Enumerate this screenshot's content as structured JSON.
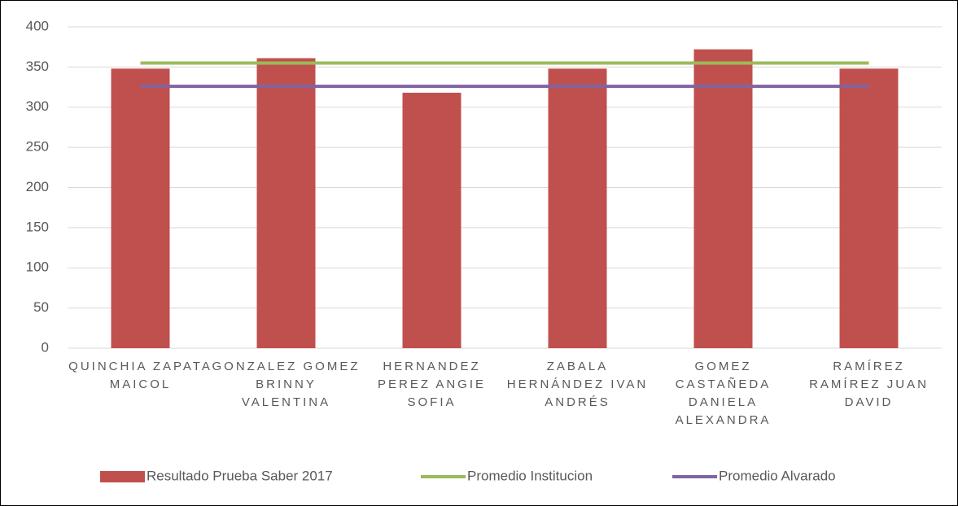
{
  "chart_data": {
    "type": "bar",
    "categories": [
      "QUINCHIA ZAPATA MAICOL",
      "GONZALEZ GOMEZ BRINNY VALENTINA",
      "HERNANDEZ PEREZ ANGIE SOFIA",
      "ZABALA HERNÁNDEZ IVAN ANDRÉS",
      "GOMEZ CASTAÑEDA DANIELA ALEXANDRA",
      "RAMÍREZ RAMÍREZ JUAN DAVID"
    ],
    "series": [
      {
        "name": "Resultado Prueba Saber 2017",
        "type": "bar",
        "color": "#c0504d",
        "values": [
          348,
          361,
          318,
          348,
          372,
          348
        ]
      },
      {
        "name": "Promedio Institucion",
        "type": "line",
        "color": "#9bbb59",
        "values": [
          355,
          355,
          355,
          355,
          355,
          355
        ]
      },
      {
        "name": "Promedio Alvarado",
        "type": "line",
        "color": "#8064a2",
        "values": [
          326,
          326,
          326,
          326,
          326,
          326
        ]
      }
    ],
    "ylim": [
      0,
      400
    ],
    "yticks": [
      0,
      50,
      100,
      150,
      200,
      250,
      300,
      350,
      400
    ],
    "grid": true,
    "legend": "bottom"
  }
}
